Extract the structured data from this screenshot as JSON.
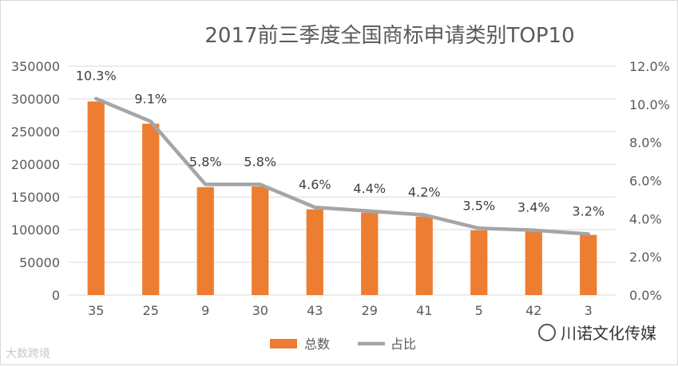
{
  "chart_data": {
    "type": "bar",
    "title": "2017前三季度全国商标申请类别TOP10",
    "categories": [
      "35",
      "25",
      "9",
      "30",
      "43",
      "29",
      "41",
      "5",
      "42",
      "3"
    ],
    "series": [
      {
        "name": "总数",
        "type": "bar",
        "axis": "left",
        "color": "#ed7d31",
        "values": [
          296000,
          262000,
          165000,
          166000,
          131000,
          126000,
          120000,
          99000,
          98000,
          92000
        ]
      },
      {
        "name": "占比",
        "type": "line",
        "axis": "right",
        "color": "#a5a5a5",
        "values": [
          10.3,
          9.1,
          5.8,
          5.8,
          4.6,
          4.4,
          4.2,
          3.5,
          3.4,
          3.2
        ],
        "labels": [
          "10.3%",
          "9.1%",
          "5.8%",
          "5.8%",
          "4.6%",
          "4.4%",
          "4.2%",
          "3.5%",
          "3.4%",
          "3.2%"
        ]
      }
    ],
    "y_left": {
      "range": [
        0,
        350000
      ],
      "ticks": [
        "0",
        "50000",
        "100000",
        "150000",
        "200000",
        "250000",
        "300000",
        "350000"
      ]
    },
    "y_right": {
      "range": [
        0,
        12
      ],
      "ticks": [
        "0.0%",
        "2.0%",
        "4.0%",
        "6.0%",
        "8.0%",
        "10.0%",
        "12.0%"
      ]
    },
    "grid": true,
    "legend_position": "bottom"
  },
  "watermarks": {
    "left": "大数跨境",
    "right": "川诺文化传媒"
  }
}
